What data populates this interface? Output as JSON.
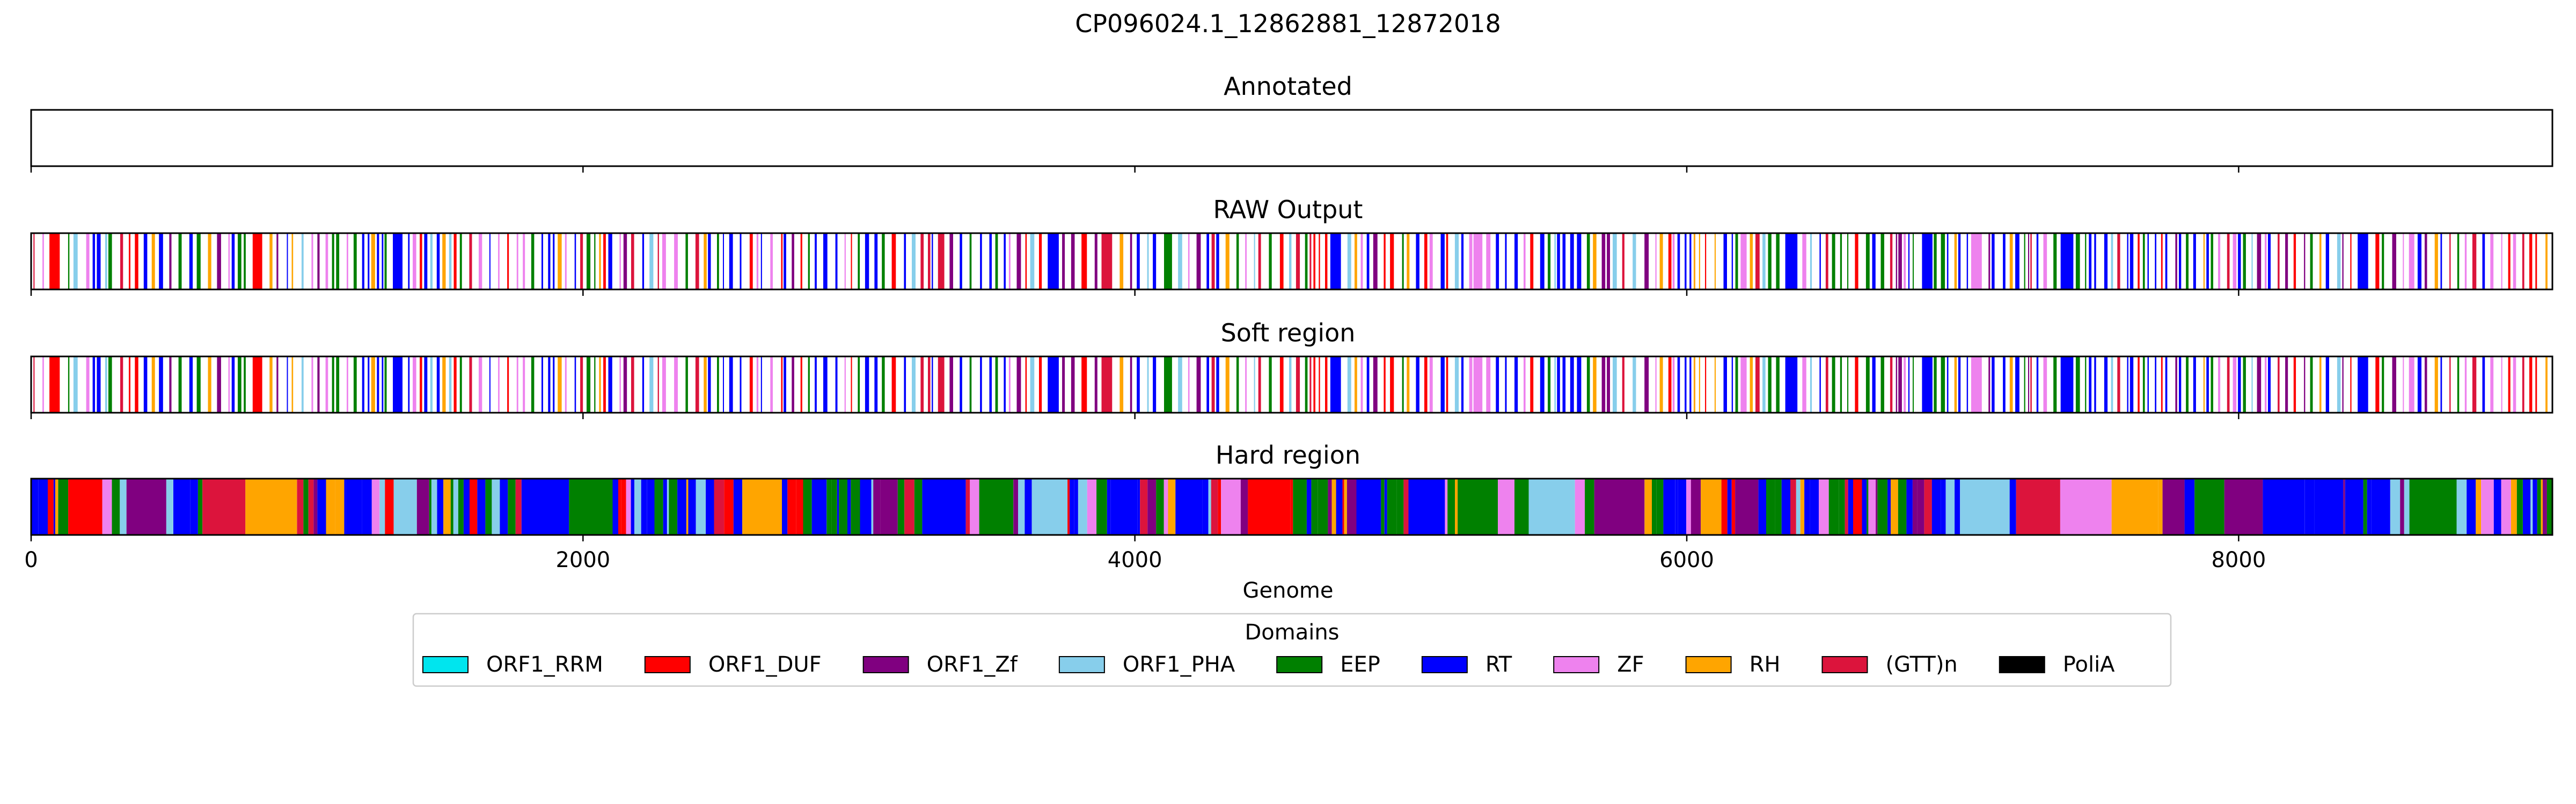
{
  "chart_data": {
    "type": "bar",
    "title": "CP096024.1_12862881_12872018",
    "xlabel": "Genome",
    "xlim": [
      0,
      9137
    ],
    "x_ticks": [
      0,
      2000,
      4000,
      6000,
      8000
    ],
    "x_tick_labels": [
      "0",
      "2000",
      "4000",
      "6000",
      "8000"
    ],
    "grid": false,
    "legend": {
      "title": "Domains",
      "placement": "bottom-center",
      "entries": [
        {
          "name": "ORF1_RRM",
          "color": "#00e5ee"
        },
        {
          "name": "ORF1_DUF",
          "color": "#ff0000"
        },
        {
          "name": "ORF1_Zf",
          "color": "#800080"
        },
        {
          "name": "ORF1_PHA",
          "color": "#87ceeb"
        },
        {
          "name": "EEP",
          "color": "#008000"
        },
        {
          "name": "RT",
          "color": "#0000ff"
        },
        {
          "name": "ZF",
          "color": "#ee82ee"
        },
        {
          "name": "RH",
          "color": "#ffa500"
        },
        {
          "name": "(GTT)n",
          "color": "#dc143c"
        },
        {
          "name": "PoliA",
          "color": "#000000"
        }
      ]
    },
    "tracks": [
      {
        "title": "Annotated",
        "mode": "empty"
      },
      {
        "title": "RAW Output",
        "mode": "sparse"
      },
      {
        "title": "Soft region",
        "mode": "sparse"
      },
      {
        "title": "Hard region",
        "mode": "dense"
      }
    ]
  }
}
